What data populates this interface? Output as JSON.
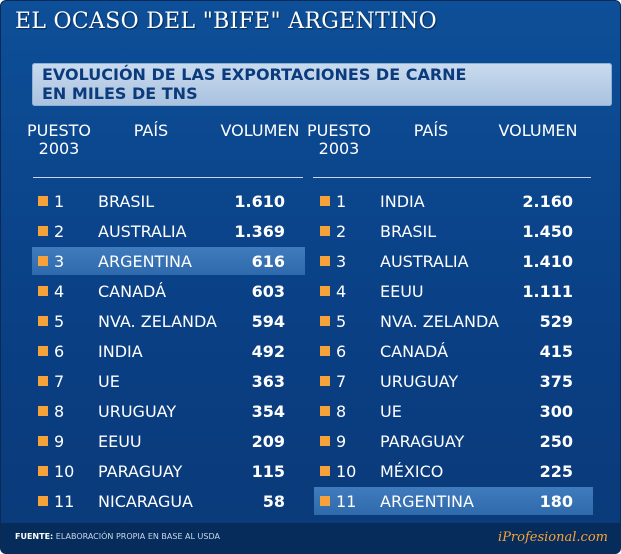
{
  "header": {
    "title": "EL OCASO DEL \"BIFE\" ARGENTINO",
    "subtitle_line1": "EVOLUCIÓN DE LAS EXPORTACIONES DE CARNE",
    "subtitle_line2": "EN MILES DE TNS"
  },
  "columns": {
    "puesto_line1": "PUESTO",
    "puesto_line2": "2003",
    "pais": "PAÍS",
    "volumen": "VOLUMEN"
  },
  "colors": {
    "background": "#0d4f98",
    "highlight": "#3f7bbd",
    "bullet": "#f6a23a",
    "subtitle_box": "#c9dbee"
  },
  "chart_data": {
    "type": "table",
    "title": "EL OCASO DEL \"BIFE\" ARGENTINO",
    "subtitle": "EVOLUCIÓN DE LAS EXPORTACIONES DE CARNE EN MILES DE TNS",
    "tables": [
      {
        "header_year": "2003",
        "highlighted": "ARGENTINA",
        "rows": [
          {
            "rank": "1",
            "country": "BRASIL",
            "volume": "1.610"
          },
          {
            "rank": "2",
            "country": "AUSTRALIA",
            "volume": "1.369"
          },
          {
            "rank": "3",
            "country": "ARGENTINA",
            "volume": "616"
          },
          {
            "rank": "4",
            "country": "CANADÁ",
            "volume": "603"
          },
          {
            "rank": "5",
            "country": "NVA. ZELANDA",
            "volume": "594"
          },
          {
            "rank": "6",
            "country": "INDIA",
            "volume": "492"
          },
          {
            "rank": "7",
            "country": "UE",
            "volume": "363"
          },
          {
            "rank": "8",
            "country": "URUGUAY",
            "volume": "354"
          },
          {
            "rank": "9",
            "country": "EEUU",
            "volume": "209"
          },
          {
            "rank": "10",
            "country": "PARAGUAY",
            "volume": "115"
          },
          {
            "rank": "11",
            "country": "NICARAGUA",
            "volume": "58"
          }
        ]
      },
      {
        "header_year": "2003",
        "highlighted": "ARGENTINA",
        "rows": [
          {
            "rank": "1",
            "country": "INDIA",
            "volume": "2.160"
          },
          {
            "rank": "2",
            "country": "BRASIL",
            "volume": "1.450"
          },
          {
            "rank": "3",
            "country": "AUSTRALIA",
            "volume": "1.410"
          },
          {
            "rank": "4",
            "country": "EEUU",
            "volume": "1.111"
          },
          {
            "rank": "5",
            "country": "NVA. ZELANDA",
            "volume": "529"
          },
          {
            "rank": "6",
            "country": "CANADÁ",
            "volume": "415"
          },
          {
            "rank": "7",
            "country": "URUGUAY",
            "volume": "375"
          },
          {
            "rank": "8",
            "country": "UE",
            "volume": "300"
          },
          {
            "rank": "9",
            "country": "PARAGUAY",
            "volume": "250"
          },
          {
            "rank": "10",
            "country": "MÉXICO",
            "volume": "225"
          },
          {
            "rank": "11",
            "country": "ARGENTINA",
            "volume": "180"
          }
        ]
      }
    ]
  },
  "footer": {
    "source_label": "FUENTE:",
    "source_text": "ELABORACIÓN PROPIA EN BASE AL USDA",
    "brand": "iProfesional.com"
  }
}
